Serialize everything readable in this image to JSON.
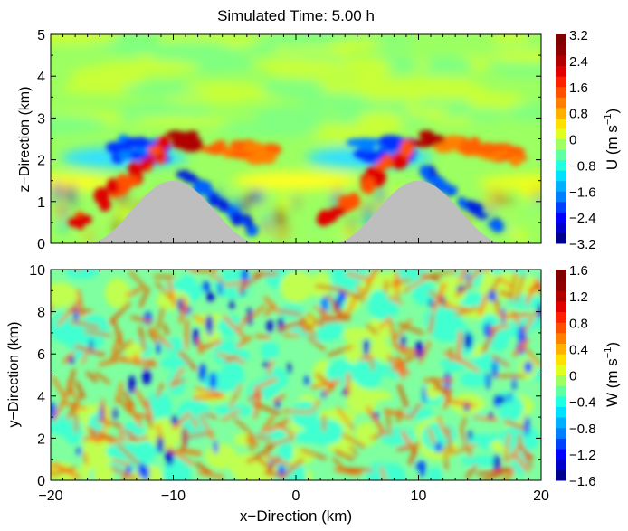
{
  "chart_data": [
    {
      "type": "heatmap",
      "title": "Simulated Time: 5.00 h",
      "xlabel": "",
      "ylabel": "z−Direction (km)",
      "xlim": [
        -20,
        20
      ],
      "ylim": [
        0,
        5
      ],
      "xticks": [
        -20,
        -10,
        0,
        10,
        20
      ],
      "yticks": [
        "0",
        "1",
        "2",
        "3",
        "4",
        "5"
      ],
      "colorbar": {
        "label": "U (m s⁻¹)",
        "label_main": "U (m s",
        "label_sup": "−1",
        "label_close": ")",
        "range": [
          -3.2,
          3.2
        ],
        "ticks": [
          "3.2",
          "2.4",
          "1.6",
          "0.8",
          "0",
          "−0.8",
          "−1.6",
          "−2.4",
          "−3.2"
        ]
      },
      "terrain": {
        "description": "two cosine-shaped hills (grey)",
        "peak_height_km": 1.5,
        "centers_km": [
          -10,
          10
        ],
        "half_width_km": 7,
        "color": "#bebebe"
      },
      "features": [
        {
          "name": "upwind positive jet over left hill",
          "sign": "positive",
          "z_km": [
            0.3,
            2.7
          ]
        },
        {
          "name": "lee-side negative band",
          "sign": "negative",
          "z_km": [
            1.6,
            2.4
          ]
        },
        {
          "name": "downstream positive plume",
          "sign": "positive",
          "z_km": [
            1.9,
            2.6
          ]
        }
      ]
    },
    {
      "type": "heatmap",
      "title": "",
      "xlabel": "x−Direction (km)",
      "ylabel": "y−Direction (km)",
      "xlim": [
        -20,
        20
      ],
      "ylim": [
        0,
        10
      ],
      "xticks": [
        "−20",
        "−10",
        "0",
        "10",
        "20"
      ],
      "yticks": [
        "0",
        "2",
        "4",
        "6",
        "8",
        "10"
      ],
      "colorbar": {
        "label": "W (m s⁻¹)",
        "label_main": "W (m s",
        "label_sup": "−1",
        "label_close": ")",
        "range": [
          -1.6,
          1.6
        ],
        "ticks": [
          "1.6",
          "1.2",
          "0.8",
          "0.4",
          "0",
          "−0.4",
          "−0.8",
          "−1.2",
          "−1.6"
        ]
      },
      "features": [
        {
          "name": "cellular convective network of updraft lines",
          "sign": "positive"
        }
      ]
    }
  ],
  "colors": {
    "colormap": [
      "#00008f",
      "#0000ff",
      "#0070ff",
      "#00c8ff",
      "#40ffbf",
      "#80ff80",
      "#bfff40",
      "#ffff00",
      "#ffb000",
      "#ff5000",
      "#ff0000",
      "#8f0000"
    ],
    "terrain": "#bebebe",
    "background_field": "#9cff62"
  }
}
